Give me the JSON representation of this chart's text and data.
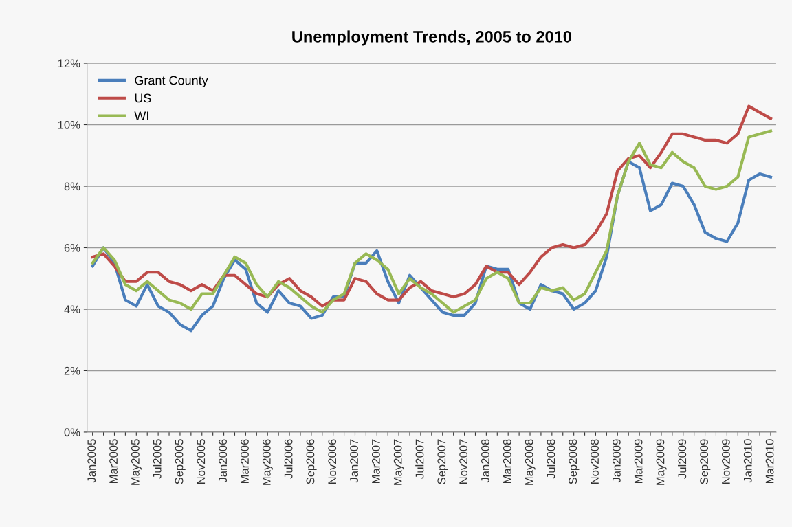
{
  "chart_data": {
    "type": "line",
    "title": "Unemployment Trends, 2005 to 2010",
    "categories": [
      "Jan2005",
      null,
      "Mar2005",
      null,
      "May2005",
      null,
      "Jul2005",
      null,
      "Sep2005",
      null,
      "Nov2005",
      null,
      "Jan2006",
      null,
      "Mar2006",
      null,
      "May2006",
      null,
      "Jul2006",
      null,
      "Sep2006",
      null,
      "Nov2006",
      null,
      "Jan2007",
      null,
      "Mar2007",
      null,
      "May2007",
      null,
      "Jul2007",
      null,
      "Sep2007",
      null,
      "Nov2007",
      null,
      "Jan2008",
      null,
      "Mar2008",
      null,
      "May2008",
      null,
      "Jul2008",
      null,
      "Sep2008",
      null,
      "Nov2008",
      null,
      "Jan2009",
      null,
      "Mar2009",
      null,
      "May2009",
      null,
      "Jul2009",
      null,
      "Sep2009",
      null,
      "Nov2009",
      null,
      "Jan2010",
      null,
      "Mar2010"
    ],
    "series": [
      {
        "name": "Grant County",
        "color": "#4a7ebb",
        "values": [
          5.4,
          6.0,
          5.5,
          4.3,
          4.1,
          4.8,
          4.1,
          3.9,
          3.5,
          3.3,
          3.8,
          4.1,
          5.0,
          5.6,
          5.3,
          4.2,
          3.9,
          4.6,
          4.2,
          4.1,
          3.7,
          3.8,
          4.4,
          4.4,
          5.5,
          5.5,
          5.9,
          4.9,
          4.2,
          5.1,
          4.7,
          4.3,
          3.9,
          3.8,
          3.8,
          4.2,
          5.4,
          5.3,
          5.3,
          4.2,
          4.0,
          4.8,
          4.6,
          4.5,
          4.0,
          4.2,
          4.6,
          5.7,
          7.7,
          8.8,
          8.6,
          7.2,
          7.4,
          8.1,
          8.0,
          7.4,
          6.5,
          6.3,
          6.2,
          6.8,
          8.2,
          8.4,
          8.3
        ]
      },
      {
        "name": "US",
        "color": "#be4b48",
        "values": [
          5.7,
          5.8,
          5.4,
          4.9,
          4.9,
          5.2,
          5.2,
          4.9,
          4.8,
          4.6,
          4.8,
          4.6,
          5.1,
          5.1,
          4.8,
          4.5,
          4.4,
          4.8,
          5.0,
          4.6,
          4.4,
          4.1,
          4.3,
          4.3,
          5.0,
          4.9,
          4.5,
          4.3,
          4.3,
          4.7,
          4.9,
          4.6,
          4.5,
          4.4,
          4.5,
          4.8,
          5.4,
          5.2,
          5.2,
          4.8,
          5.2,
          5.7,
          6.0,
          6.1,
          6.0,
          6.1,
          6.5,
          7.1,
          8.5,
          8.9,
          9.0,
          8.6,
          9.1,
          9.7,
          9.7,
          9.6,
          9.5,
          9.5,
          9.4,
          9.7,
          10.6,
          10.4,
          10.2
        ]
      },
      {
        "name": "WI",
        "color": "#98b954",
        "values": [
          5.5,
          6.0,
          5.6,
          4.8,
          4.6,
          4.9,
          4.6,
          4.3,
          4.2,
          4.0,
          4.5,
          4.5,
          5.1,
          5.7,
          5.5,
          4.8,
          4.4,
          4.9,
          4.7,
          4.4,
          4.1,
          3.9,
          4.3,
          4.5,
          5.5,
          5.8,
          5.6,
          5.3,
          4.5,
          5.0,
          4.7,
          4.5,
          4.2,
          3.9,
          4.1,
          4.3,
          5.0,
          5.2,
          5.0,
          4.2,
          4.2,
          4.7,
          4.6,
          4.7,
          4.3,
          4.5,
          5.2,
          5.9,
          7.7,
          8.8,
          9.4,
          8.7,
          8.6,
          9.1,
          8.8,
          8.6,
          8.0,
          7.9,
          8.0,
          8.3,
          9.6,
          9.7,
          9.8
        ]
      }
    ],
    "ylim": [
      0,
      12
    ],
    "yticks": [
      {
        "value": 0,
        "label": "0%"
      },
      {
        "value": 2,
        "label": "2%"
      },
      {
        "value": 4,
        "label": "4%"
      },
      {
        "value": 6,
        "label": "6%"
      },
      {
        "value": 8,
        "label": "8%"
      },
      {
        "value": 10,
        "label": "10%"
      },
      {
        "value": 12,
        "label": "12%"
      }
    ],
    "grid": "y",
    "legend": "top left",
    "marker": "none",
    "line_style": "solid"
  }
}
